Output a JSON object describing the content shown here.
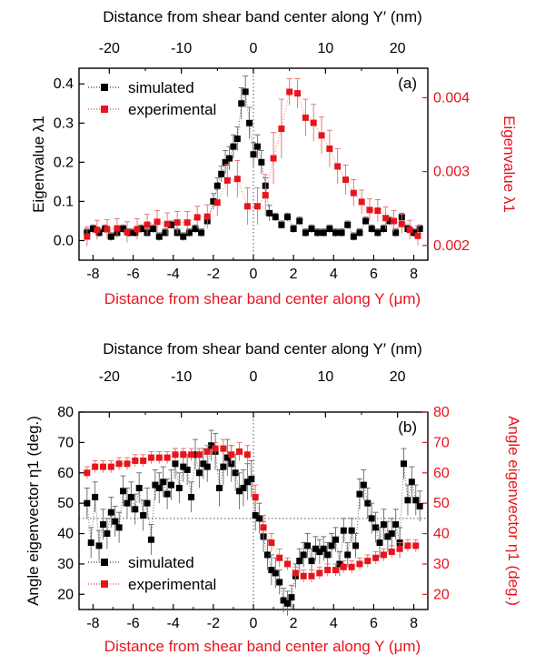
{
  "chart_data": [
    {
      "panel": "(a)",
      "type": "scatter",
      "xlabel": "Distance from shear band center along Y (μm)",
      "xlabel_top": "Distance from shear band center along Y′ (nm)",
      "ylabel_left": "Eigenvalue λ1",
      "ylabel_right": "Eigenvalue λ1",
      "xlim": [
        -8.7,
        8.7
      ],
      "xticks": [
        -8,
        -6,
        -4,
        -2,
        0,
        2,
        4,
        6,
        8
      ],
      "xticklabels": [
        "-8",
        "-6",
        "-4",
        "-2",
        "0",
        "2",
        "4",
        "6",
        "8"
      ],
      "xlim_top": [
        -24.2,
        24.2
      ],
      "xticks_top": [
        -20,
        -10,
        0,
        10,
        20
      ],
      "xticklabels_top": [
        "-20",
        "-10",
        "0",
        "10",
        "20"
      ],
      "ylim_left": [
        -0.05,
        0.44
      ],
      "yticks_left": [
        0.0,
        0.1,
        0.2,
        0.3,
        0.4
      ],
      "yticklabels_left": [
        "0.0",
        "0.1",
        "0.2",
        "0.3",
        "0.4"
      ],
      "ylim_right": [
        0.0018,
        0.0044
      ],
      "yticks_right": [
        0.002,
        0.003,
        0.004
      ],
      "yticklabels_right": [
        "0.002",
        "0.003",
        "0.004"
      ],
      "reference_lines": {
        "vertical_x": 0
      },
      "legend_position": "top-left",
      "series": [
        {
          "name": "simulated",
          "color": "#000000",
          "axis": "left",
          "x": [
            -8.3,
            -8.0,
            -7.7,
            -7.4,
            -7.1,
            -6.8,
            -6.5,
            -6.2,
            -5.9,
            -5.6,
            -5.3,
            -5.0,
            -4.7,
            -4.4,
            -4.1,
            -3.8,
            -3.5,
            -3.2,
            -2.9,
            -2.6,
            -2.3,
            -2.0,
            -1.8,
            -1.6,
            -1.4,
            -1.2,
            -1.0,
            -0.8,
            -0.6,
            -0.4,
            -0.2,
            0.0,
            0.2,
            0.4,
            0.6,
            0.8,
            1.1,
            1.4,
            1.7,
            2.0,
            2.3,
            2.6,
            2.9,
            3.2,
            3.5,
            3.8,
            4.1,
            4.4,
            4.7,
            5.0,
            5.3,
            5.6,
            5.9,
            6.2,
            6.5,
            6.8,
            7.1,
            7.4,
            7.7,
            8.0,
            8.3
          ],
          "y": [
            0.02,
            0.03,
            0.02,
            0.03,
            0.01,
            0.02,
            0.03,
            0.02,
            0.02,
            0.03,
            0.02,
            0.03,
            0.01,
            0.02,
            0.04,
            0.02,
            0.01,
            0.02,
            0.03,
            0.02,
            0.05,
            0.1,
            0.14,
            0.17,
            0.2,
            0.21,
            0.24,
            0.26,
            0.35,
            0.38,
            0.3,
            0.22,
            0.24,
            0.2,
            0.14,
            0.07,
            0.06,
            0.04,
            0.06,
            0.03,
            0.05,
            0.02,
            0.03,
            0.02,
            0.02,
            0.03,
            0.02,
            0.02,
            0.04,
            0.01,
            0.02,
            0.05,
            0.03,
            0.02,
            0.03,
            0.05,
            0.02,
            0.06,
            0.03,
            0.02,
            0.03
          ],
          "yerr": [
            0.01,
            0.01,
            0.01,
            0.01,
            0.01,
            0.01,
            0.01,
            0.01,
            0.01,
            0.01,
            0.01,
            0.01,
            0.01,
            0.01,
            0.01,
            0.01,
            0.01,
            0.01,
            0.01,
            0.01,
            0.01,
            0.02,
            0.02,
            0.02,
            0.03,
            0.03,
            0.03,
            0.03,
            0.04,
            0.04,
            0.04,
            0.03,
            0.03,
            0.03,
            0.02,
            0.02,
            0.01,
            0.01,
            0.01,
            0.01,
            0.01,
            0.01,
            0.01,
            0.01,
            0.01,
            0.01,
            0.01,
            0.01,
            0.01,
            0.01,
            0.01,
            0.01,
            0.01,
            0.01,
            0.01,
            0.01,
            0.01,
            0.01,
            0.01,
            0.01,
            0.01
          ]
        },
        {
          "name": "experimental",
          "color": "#e8141b",
          "axis": "right",
          "x": [
            -8.3,
            -7.8,
            -7.3,
            -6.8,
            -6.3,
            -5.8,
            -5.3,
            -4.8,
            -4.3,
            -3.8,
            -3.3,
            -2.8,
            -2.3,
            -1.8,
            -1.3,
            -0.8,
            -0.3,
            0.2,
            0.6,
            1.0,
            1.4,
            1.8,
            2.2,
            2.6,
            3.0,
            3.4,
            3.8,
            4.2,
            4.6,
            5.0,
            5.4,
            5.8,
            6.2,
            6.6,
            7.0,
            7.4,
            7.8,
            8.2
          ],
          "y": [
            0.00212,
            0.00221,
            0.00222,
            0.00223,
            0.00218,
            0.00222,
            0.00228,
            0.00232,
            0.00229,
            0.00231,
            0.00231,
            0.00238,
            0.00239,
            0.00258,
            0.00288,
            0.0029,
            0.00253,
            0.00253,
            0.00268,
            0.00318,
            0.00358,
            0.00408,
            0.00406,
            0.00373,
            0.00366,
            0.00349,
            0.00331,
            0.00307,
            0.00289,
            0.00271,
            0.00259,
            0.00248,
            0.00247,
            0.00237,
            0.00233,
            0.00229,
            0.00221,
            0.00213
          ],
          "yerr": [
            0.00013,
            0.00013,
            0.00013,
            0.00013,
            0.00014,
            0.00014,
            0.00014,
            0.00015,
            0.00015,
            0.00015,
            0.00015,
            0.00015,
            0.00016,
            0.00018,
            0.00022,
            0.00025,
            0.00025,
            0.00025,
            0.00028,
            0.00035,
            0.0004,
            0.00018,
            0.0002,
            0.00025,
            0.00025,
            0.00025,
            0.00025,
            0.00024,
            0.0002,
            0.00018,
            0.00016,
            0.00015,
            0.00015,
            0.00015,
            0.00014,
            0.00013,
            0.00013,
            0.00013
          ]
        }
      ]
    },
    {
      "panel": "(b)",
      "type": "scatter",
      "xlabel": "Distance from shear band center along Y (μm)",
      "xlabel_top": "Distance from shear band center along Y′ (nm)",
      "ylabel_left": "Angle eigenvector η1 (deg.)",
      "ylabel_right": "Angle eigenvector η1 (deg.)",
      "xlim": [
        -8.7,
        8.7
      ],
      "xticks": [
        -8,
        -6,
        -4,
        -2,
        0,
        2,
        4,
        6,
        8
      ],
      "xticklabels": [
        "-8",
        "-6",
        "-4",
        "-2",
        "0",
        "2",
        "4",
        "6",
        "8"
      ],
      "xlim_top": [
        -24.2,
        24.2
      ],
      "xticks_top": [
        -20,
        -10,
        0,
        10,
        20
      ],
      "xticklabels_top": [
        "-20",
        "-10",
        "0",
        "10",
        "20"
      ],
      "ylim_left": [
        15,
        80
      ],
      "yticks_left": [
        20,
        30,
        40,
        50,
        60,
        70,
        80
      ],
      "yticklabels_left": [
        "20",
        "30",
        "40",
        "50",
        "60",
        "70",
        "80"
      ],
      "ylim_right": [
        15,
        80
      ],
      "yticks_right": [
        20,
        30,
        40,
        50,
        60,
        70,
        80
      ],
      "yticklabels_right": [
        "20",
        "30",
        "40",
        "50",
        "60",
        "70",
        "80"
      ],
      "reference_lines": {
        "vertical_x": 0,
        "horizontal_y": 45
      },
      "legend_position": "bottom-left",
      "series": [
        {
          "name": "simulated",
          "color": "#000000",
          "axis": "left",
          "x": [
            -8.3,
            -8.1,
            -7.9,
            -7.7,
            -7.5,
            -7.3,
            -7.1,
            -6.9,
            -6.7,
            -6.5,
            -6.3,
            -6.1,
            -5.9,
            -5.7,
            -5.5,
            -5.3,
            -5.1,
            -4.9,
            -4.7,
            -4.5,
            -4.3,
            -4.1,
            -3.9,
            -3.7,
            -3.5,
            -3.3,
            -3.1,
            -2.9,
            -2.7,
            -2.5,
            -2.3,
            -2.1,
            -1.9,
            -1.7,
            -1.5,
            -1.3,
            -1.1,
            -0.9,
            -0.7,
            -0.5,
            -0.3,
            -0.1,
            0.1,
            0.3,
            0.5,
            0.7,
            0.9,
            1.1,
            1.3,
            1.5,
            1.7,
            1.9,
            2.1,
            2.3,
            2.5,
            2.7,
            2.9,
            3.1,
            3.3,
            3.5,
            3.7,
            3.9,
            4.1,
            4.3,
            4.5,
            4.7,
            4.9,
            5.1,
            5.3,
            5.5,
            5.7,
            5.9,
            6.1,
            6.3,
            6.5,
            6.7,
            6.9,
            7.1,
            7.3,
            7.5,
            7.7,
            7.9,
            8.1,
            8.3
          ],
          "y": [
            50,
            37,
            52,
            36,
            43,
            40,
            47,
            44,
            42,
            54,
            50,
            52,
            48,
            55,
            46,
            50,
            38,
            56,
            55,
            57,
            53,
            56,
            63,
            55,
            62,
            61,
            52,
            66,
            60,
            63,
            62,
            69,
            67,
            55,
            62,
            65,
            63,
            60,
            54,
            55,
            57,
            58,
            46,
            45,
            39,
            33,
            28,
            27,
            24,
            18,
            17,
            19,
            26,
            31,
            33,
            36,
            31,
            35,
            34,
            35,
            33,
            36,
            38,
            30,
            41,
            33,
            41,
            36,
            53,
            56,
            50,
            45,
            42,
            37,
            43,
            39,
            40,
            43,
            37,
            63,
            51,
            57,
            51,
            49
          ],
          "yerr": [
            5,
            5,
            5,
            5,
            5,
            5,
            5,
            5,
            5,
            5,
            5,
            5,
            5,
            5,
            5,
            5,
            5,
            5,
            5,
            5,
            5,
            5,
            5,
            5,
            5,
            5,
            5,
            5,
            5,
            5,
            5,
            5,
            6,
            6,
            6,
            6,
            6,
            6,
            6,
            6,
            6,
            6,
            5,
            5,
            5,
            5,
            5,
            5,
            4,
            4,
            4,
            4,
            4,
            4,
            4,
            4,
            4,
            4,
            4,
            4,
            4,
            4,
            4,
            4,
            4,
            4,
            4,
            4,
            5,
            5,
            5,
            5,
            5,
            5,
            5,
            5,
            5,
            5,
            5,
            5,
            5,
            5,
            5,
            5
          ]
        },
        {
          "name": "experimental",
          "color": "#e8141b",
          "axis": "right",
          "x": [
            -8.3,
            -7.9,
            -7.5,
            -7.1,
            -6.7,
            -6.3,
            -5.9,
            -5.5,
            -5.1,
            -4.7,
            -4.3,
            -3.9,
            -3.5,
            -3.1,
            -2.7,
            -2.3,
            -1.9,
            -1.5,
            -1.1,
            -0.7,
            -0.3,
            0.1,
            0.5,
            0.9,
            1.3,
            1.7,
            2.1,
            2.5,
            2.9,
            3.3,
            3.7,
            4.1,
            4.5,
            4.9,
            5.3,
            5.7,
            6.1,
            6.5,
            6.9,
            7.3,
            7.7,
            8.1
          ],
          "y": [
            60,
            62,
            62,
            62,
            63,
            63,
            64,
            64,
            65,
            65,
            65,
            66,
            66,
            66,
            66,
            67,
            68,
            68,
            66,
            67,
            66,
            52,
            42,
            37,
            32,
            30,
            27,
            26,
            26,
            27,
            28,
            28,
            29,
            29,
            30,
            31,
            32,
            33,
            34,
            35,
            36,
            36
          ],
          "yerr": [
            2,
            2,
            2,
            2,
            2,
            2,
            2,
            2,
            2,
            2,
            2,
            2,
            2,
            2,
            2,
            2,
            2,
            3,
            3,
            3,
            3,
            4,
            4,
            3,
            3,
            2,
            2,
            2,
            2,
            2,
            2,
            2,
            2,
            2,
            2,
            2,
            2,
            2,
            2,
            2,
            2,
            2
          ]
        }
      ]
    }
  ]
}
